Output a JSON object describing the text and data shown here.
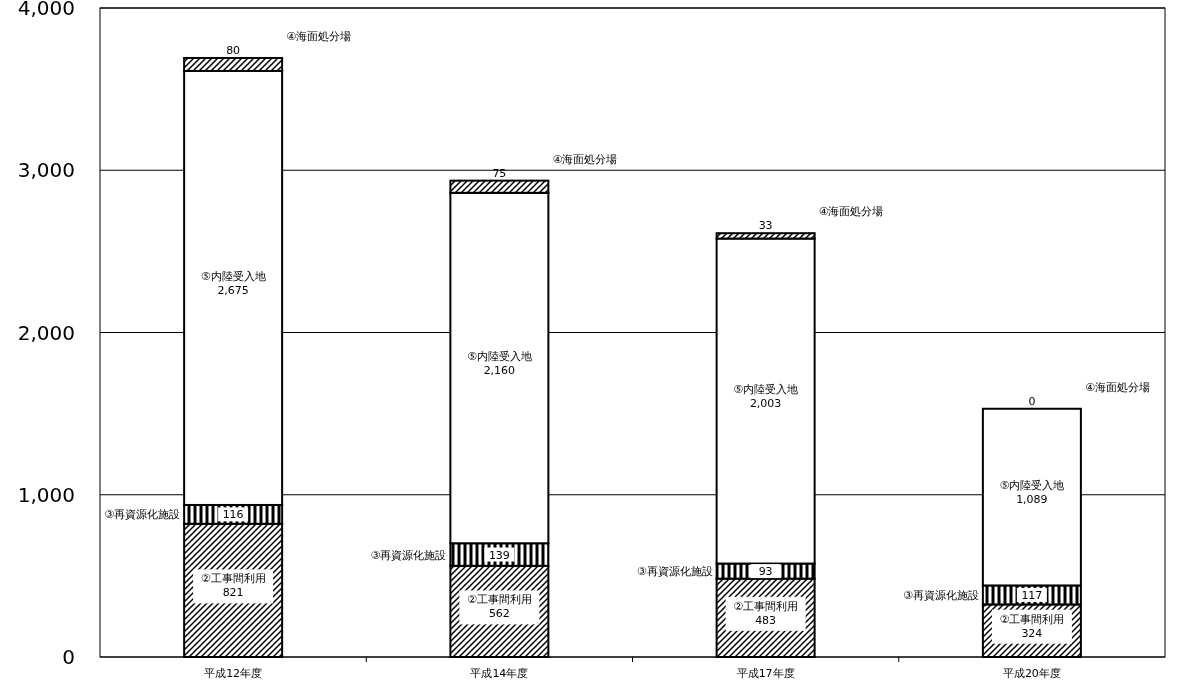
{
  "chart_data": {
    "type": "bar",
    "stacked": true,
    "categories": [
      "平成12年度",
      "平成14年度",
      "平成17年度",
      "平成20年度"
    ],
    "series": [
      {
        "name": "②工事間利用",
        "color": "#000000",
        "values": [
          821,
          562,
          483,
          324
        ],
        "value_labels": [
          "821",
          "562",
          "483",
          "324"
        ]
      },
      {
        "name": "③再資源化施設",
        "color": "#000000",
        "values": [
          116,
          139,
          93,
          117
        ],
        "value_labels": [
          "116",
          "139",
          "93",
          "117"
        ]
      },
      {
        "name": "⑤内陸受入地",
        "color": "#ffffff",
        "values": [
          2675,
          2160,
          2003,
          1089
        ],
        "value_labels": [
          "2,675",
          "2,160",
          "2,003",
          "1,089"
        ]
      },
      {
        "name": "④海面処分場",
        "color": "#000000",
        "values": [
          80,
          75,
          33,
          0
        ],
        "value_labels": [
          "80",
          "75",
          "33",
          "0"
        ]
      }
    ],
    "ylim": [
      0,
      4000
    ],
    "yticks": [
      0,
      {
        "value": 1000,
        "label": "1,000"
      },
      {
        "value": 2000,
        "label": "2,000"
      },
      {
        "value": 3000,
        "label": "3,000"
      },
      {
        "value": 4000,
        "label": "4,000"
      }
    ],
    "grid": "y"
  }
}
